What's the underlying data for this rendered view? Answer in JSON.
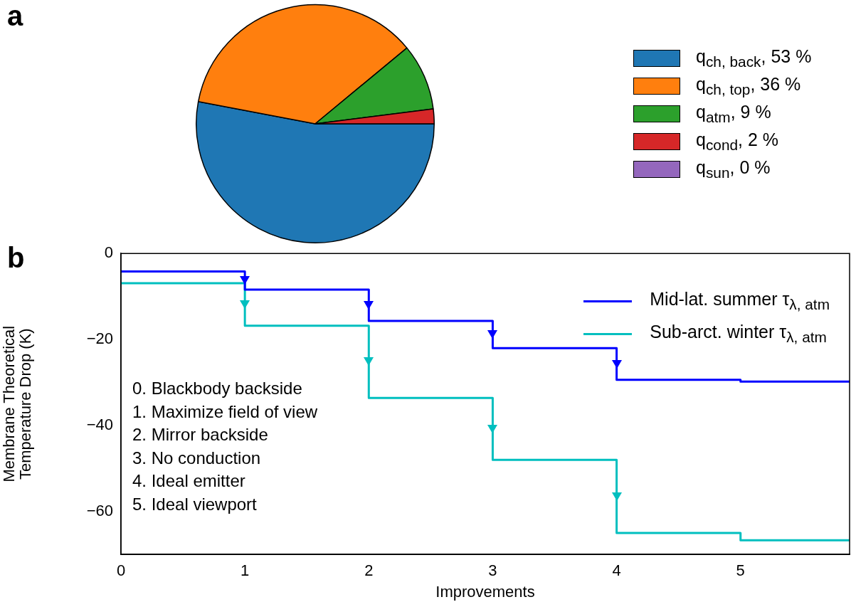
{
  "chart_data": [
    {
      "type": "pie",
      "title": "a",
      "categories": [
        "q$_{ch, back}$, 53 %",
        "q$_{ch, top}$, 36 %",
        "q$_{atm}$, 9 %",
        "q$_{cond}$, 2 %",
        "q$_{sun}$, 0 %"
      ],
      "values": [
        53,
        36,
        9,
        2,
        0
      ],
      "colors": [
        "#1f77b4",
        "#ff7f0e",
        "#2ca02c",
        "#d62728",
        "#9467bd"
      ],
      "legend": "right"
    },
    {
      "type": "step",
      "title": "b",
      "xlabel": "Improvements",
      "ylabel": "Membrane Theoretical\nTemperature Drop (K)",
      "x": [
        0,
        1,
        2,
        3,
        4,
        5,
        5.88
      ],
      "series": [
        {
          "name": "Mid-lat. summer τ$_{λ, atm}$",
          "color": "#0000ff",
          "values": [
            -4.2,
            -8.4,
            -15.7,
            -22.0,
            -29.4,
            -29.8,
            -29.8
          ]
        },
        {
          "name": "Sub-arct. winter τ$_{λ, atm}$",
          "color": "#00bfbf",
          "values": [
            -6.9,
            -16.8,
            -33.6,
            -48.0,
            -65.0,
            -66.7,
            -66.7
          ]
        }
      ],
      "xlim": [
        0,
        5.88
      ],
      "xticks": [
        0,
        1,
        2,
        3,
        4,
        5
      ],
      "ylim": [
        -70,
        0
      ],
      "yticks": [
        0,
        {
          "value": -20,
          "label": "−20"
        },
        {
          "value": -40,
          "label": "−40"
        },
        {
          "value": -60,
          "label": "−60"
        }
      ],
      "legend": "top right",
      "annotations": [
        "0. Blackbody backside",
        "1. Maximize field of view",
        "2. Mirror backside",
        "3. No conduction",
        "4. Ideal emitter",
        "5. Ideal viewport"
      ]
    }
  ]
}
